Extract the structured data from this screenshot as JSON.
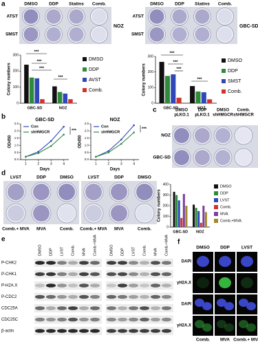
{
  "panel_labels": [
    "a",
    "b",
    "c",
    "d",
    "e",
    "f"
  ],
  "a": {
    "columns_left": [
      "DMSO",
      "DDP",
      "Statins",
      "Comb."
    ],
    "rows_left": [
      "ATST",
      "SMST"
    ],
    "cell_left": "NOZ",
    "columns_right": [
      "DMSO",
      "DDP",
      "Statins",
      "Comb."
    ],
    "rows_right": [
      "ATST",
      "SMST"
    ],
    "cell_right": "GBC-SD"
  },
  "c": {
    "columns": [
      [
        "DMSO",
        "pLKO.1"
      ],
      [
        "DDP",
        "pLKO.1"
      ],
      [
        "DMSO",
        "shHMGCR"
      ],
      [
        "Comb.",
        "shHMGCR"
      ]
    ],
    "rows": [
      "NOZ",
      "GBC-SD"
    ]
  },
  "d": {
    "top": [
      "LVST",
      "DDP",
      "DMSO",
      "LVST",
      "DDP",
      "DMSO"
    ],
    "bottom": [
      "Comb.+ MVA",
      "MVA",
      "Comb.",
      "Comb.+ MVA",
      "MVA",
      "Comb."
    ]
  },
  "e": {
    "columns": [
      "DMSO",
      "DDP",
      "LVST",
      "Comb.",
      "MVA",
      "Comb.+MVA",
      "DMSO",
      "DDP",
      "LVST",
      "Comb.",
      "MVA",
      "Comb.+MVA"
    ],
    "rows": [
      "P-CHK2",
      "P-CHK1",
      "P-H2A.X",
      "P-CDC2",
      "CDC25A",
      "CDC25C",
      "β-actin"
    ]
  },
  "f": {
    "top": [
      "DMSO",
      "DDP",
      "LVST"
    ],
    "bottom": [
      "Comb.",
      "MVA",
      "Comb.+ MVA"
    ],
    "rows": [
      "DAPI",
      "γH2A.X",
      "DAPI",
      "γH2A.X"
    ]
  },
  "chart_data": [
    {
      "type": "bar",
      "y_label": "Colony numbers",
      "categories": [
        "GBC-SD",
        "NOZ"
      ],
      "ylim": [
        0,
        300
      ],
      "yticks": [
        0,
        100,
        200,
        300
      ],
      "series": [
        {
          "name": "DMSO",
          "color": "#111111",
          "values": [
            240,
            105
          ]
        },
        {
          "name": "DDP",
          "color": "#2e8b3a",
          "values": [
            160,
            70
          ]
        },
        {
          "name": "AVST",
          "color": "#2f47b8",
          "values": [
            155,
            60
          ]
        },
        {
          "name": "Comb.",
          "color": "#d0342c",
          "values": [
            25,
            25
          ]
        }
      ],
      "annotations": [
        "***",
        "***",
        "***",
        "***"
      ]
    },
    {
      "type": "bar",
      "y_label": "Colony numbers",
      "categories": [
        "GBC-SD",
        "NOZ"
      ],
      "ylim": [
        0,
        300
      ],
      "yticks": [
        0,
        100,
        200,
        300
      ],
      "series": [
        {
          "name": "DMSO",
          "color": "#111111",
          "values": [
            265,
            110
          ]
        },
        {
          "name": "DDP",
          "color": "#2e8b3a",
          "values": [
            175,
            75
          ]
        },
        {
          "name": "SMST",
          "color": "#2f47b8",
          "values": [
            185,
            70
          ]
        },
        {
          "name": "Comb.",
          "color": "#d0342c",
          "values": [
            35,
            25
          ]
        }
      ],
      "annotations": [
        "***",
        "***",
        "***",
        "***"
      ]
    },
    {
      "type": "line",
      "title": "GBC-SD",
      "x_label": "Days",
      "y_label": "OD450",
      "x": [
        1,
        2,
        3,
        4
      ],
      "xlim": [
        0.6,
        4.4
      ],
      "xticks": [
        1,
        2,
        3,
        4
      ],
      "ylim": [
        0,
        2.5
      ],
      "yticks": [
        {
          "value": 0,
          "label": "0.0"
        },
        {
          "value": 0.5,
          "label": "0.5"
        },
        {
          "value": 1,
          "label": "1.0"
        },
        {
          "value": 1.5,
          "label": "1.5"
        },
        {
          "value": 2,
          "label": "2.0"
        },
        {
          "value": 2.5,
          "label": "2.5"
        }
      ],
      "series": [
        {
          "name": "Con",
          "color": "#2f47b8",
          "values": [
            0.2,
            0.55,
            1.3,
            2.3
          ]
        },
        {
          "name": "shHMGCR",
          "color": "#2e8b3a",
          "values": [
            0.2,
            0.45,
            0.95,
            1.75
          ]
        }
      ],
      "annotations": [
        "***"
      ]
    },
    {
      "type": "line",
      "title": "NOZ",
      "x_label": "Days",
      "y_label": "OD450",
      "x": [
        1,
        2,
        3,
        4
      ],
      "xlim": [
        0.6,
        4.4
      ],
      "xticks": [
        1,
        2,
        3,
        4
      ],
      "ylim": [
        0,
        2.5
      ],
      "yticks": [
        {
          "value": 0,
          "label": "0.0"
        },
        {
          "value": 0.5,
          "label": "0.5"
        },
        {
          "value": 1,
          "label": "1.0"
        },
        {
          "value": 1.5,
          "label": "1.5"
        },
        {
          "value": 2,
          "label": "2.0"
        },
        {
          "value": 2.5,
          "label": "2.5"
        }
      ],
      "series": [
        {
          "name": "Con",
          "color": "#2f47b8",
          "values": [
            0.2,
            0.6,
            1.4,
            2.4
          ]
        },
        {
          "name": "shHMGCR",
          "color": "#2e8b3a",
          "values": [
            0.2,
            0.5,
            1.1,
            1.9
          ]
        }
      ],
      "annotations": [
        "***"
      ]
    },
    {
      "type": "bar",
      "y_label": "Colony numbers",
      "categories": [
        "GBC-SD",
        "NOZ"
      ],
      "ylim": [
        0,
        400
      ],
      "yticks": [
        0,
        100,
        200,
        300,
        400
      ],
      "series": [
        {
          "name": "DMSO",
          "color": "#111111",
          "values": [
            330,
            210
          ]
        },
        {
          "name": "DDP",
          "color": "#2e8b3a",
          "values": [
            300,
            180
          ]
        },
        {
          "name": "LVST",
          "color": "#2f47b8",
          "values": [
            250,
            150
          ]
        },
        {
          "name": "Comb.",
          "color": "#d0342c",
          "values": [
            85,
            40
          ]
        },
        {
          "name": "MVA",
          "color": "#7b3fa0",
          "values": [
            310,
            200
          ]
        },
        {
          "name": "Comb.+MVA",
          "color": "#a08a2a",
          "values": [
            200,
            140
          ]
        }
      ]
    }
  ]
}
